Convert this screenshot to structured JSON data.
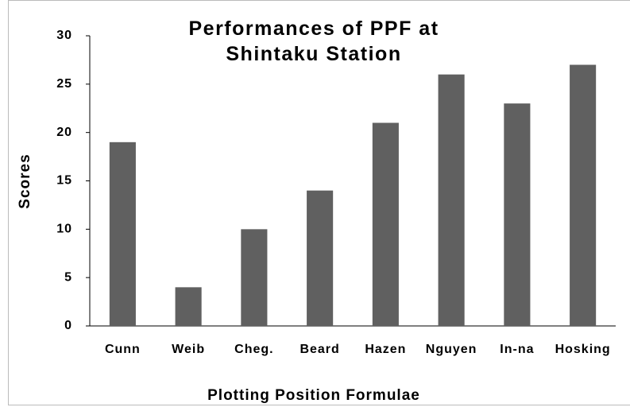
{
  "chart_data": {
    "type": "bar",
    "title": "Performances of PPF at Shintaku Station",
    "x_label": "Plotting Position Formulae",
    "y_label": "Scores",
    "categories": [
      "Cunn",
      "Weib",
      "Cheg.",
      "Beard",
      "Hazen",
      "Nguyen",
      "In-na",
      "Hosking"
    ],
    "values": [
      19,
      4,
      10,
      14,
      21,
      26,
      23,
      27
    ],
    "color": "#606060",
    "ylim": [
      0,
      30
    ],
    "yticks": [
      0,
      5,
      10,
      15,
      20,
      25,
      30
    ],
    "grid": false
  }
}
